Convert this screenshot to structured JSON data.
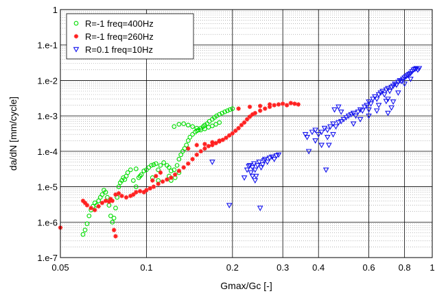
{
  "chart_data": {
    "type": "scatter",
    "title": "",
    "xlabel": "Gmax/Gc [-]",
    "ylabel": "da/dN [mm/cycle]",
    "xscale": "log",
    "yscale": "log",
    "xlim": [
      0.05,
      1
    ],
    "ylim": [
      1e-07,
      1
    ],
    "x_ticks": [
      {
        "value": 0.05,
        "label": "0.05"
      },
      {
        "value": 0.1,
        "label": "0.1"
      },
      {
        "value": 0.2,
        "label": "0.2"
      },
      {
        "value": 0.3,
        "label": "0.3"
      },
      {
        "value": 0.4,
        "label": "0.4"
      },
      {
        "value": 0.6,
        "label": "0.6"
      },
      {
        "value": 0.8,
        "label": "0.8"
      },
      {
        "value": 1,
        "label": "1"
      }
    ],
    "y_ticks": [
      {
        "value": 1e-07,
        "label": "1.e-7"
      },
      {
        "value": 1e-06,
        "label": "1.e-6"
      },
      {
        "value": 1e-05,
        "label": "1.e-5"
      },
      {
        "value": 0.0001,
        "label": "1.e-4"
      },
      {
        "value": 0.001,
        "label": "1.e-3"
      },
      {
        "value": 0.01,
        "label": "1.e-2"
      },
      {
        "value": 0.1,
        "label": "1.e-1"
      },
      {
        "value": 1,
        "label": "1"
      }
    ],
    "grid": {
      "major": true,
      "minor_y": true,
      "minor_style": "dotted"
    },
    "legend_position": "top-left",
    "series": [
      {
        "name": "R=-1 freq=400Hz",
        "color": "#00dd00",
        "marker": "circle",
        "points": [
          [
            0.06,
            4.5e-07
          ],
          [
            0.061,
            6e-07
          ],
          [
            0.062,
            9e-07
          ],
          [
            0.063,
            1.5e-06
          ],
          [
            0.064,
            2.2e-06
          ],
          [
            0.065,
            2.8e-06
          ],
          [
            0.066,
            3.5e-06
          ],
          [
            0.067,
            3e-06
          ],
          [
            0.068,
            4e-06
          ],
          [
            0.069,
            5e-06
          ],
          [
            0.07,
            6e-06
          ],
          [
            0.071,
            8e-06
          ],
          [
            0.072,
            7e-06
          ],
          [
            0.073,
            5e-06
          ],
          [
            0.074,
            3e-06
          ],
          [
            0.075,
            1.5e-06
          ],
          [
            0.076,
            1e-06
          ],
          [
            0.077,
            1.3e-06
          ],
          [
            0.078,
            2.5e-06
          ],
          [
            0.079,
            5e-06
          ],
          [
            0.08,
            1e-05
          ],
          [
            0.081,
            1.3e-05
          ],
          [
            0.082,
            1.5e-05
          ],
          [
            0.083,
            1.8e-05
          ],
          [
            0.084,
            1.6e-05
          ],
          [
            0.085,
            2e-05
          ],
          [
            0.086,
            2.5e-05
          ],
          [
            0.088,
            3e-05
          ],
          [
            0.09,
            1.5e-05
          ],
          [
            0.092,
            1e-05
          ],
          [
            0.094,
            1.8e-05
          ],
          [
            0.096,
            2.2e-05
          ],
          [
            0.098,
            2.8e-05
          ],
          [
            0.1,
            3e-05
          ],
          [
            0.102,
            3.5e-05
          ],
          [
            0.104,
            4e-05
          ],
          [
            0.106,
            4.2e-05
          ],
          [
            0.108,
            4.5e-05
          ],
          [
            0.11,
            3e-05
          ],
          [
            0.112,
            4e-05
          ],
          [
            0.115,
            4.8e-05
          ],
          [
            0.118,
            4e-05
          ],
          [
            0.12,
            3.5e-05
          ],
          [
            0.122,
            2.8e-05
          ],
          [
            0.125,
            3e-05
          ],
          [
            0.128,
            4e-05
          ],
          [
            0.13,
            6e-05
          ],
          [
            0.132,
            8e-05
          ],
          [
            0.134,
            0.0001
          ],
          [
            0.136,
            0.00012
          ],
          [
            0.138,
            0.00015
          ],
          [
            0.14,
            0.0002
          ],
          [
            0.142,
            0.00025
          ],
          [
            0.145,
            0.0003
          ],
          [
            0.148,
            0.00035
          ],
          [
            0.15,
            0.00038
          ],
          [
            0.152,
            0.0004
          ],
          [
            0.155,
            0.00045
          ],
          [
            0.158,
            0.0005
          ],
          [
            0.16,
            0.00055
          ],
          [
            0.163,
            0.0006
          ],
          [
            0.166,
            0.0007
          ],
          [
            0.17,
            0.0008
          ],
          [
            0.173,
            0.0009
          ],
          [
            0.176,
            0.001
          ],
          [
            0.18,
            0.0011
          ],
          [
            0.184,
            0.0012
          ],
          [
            0.188,
            0.0013
          ],
          [
            0.192,
            0.0014
          ],
          [
            0.196,
            0.0015
          ],
          [
            0.2,
            0.0016
          ],
          [
            0.125,
            0.0005
          ],
          [
            0.13,
            0.00058
          ],
          [
            0.135,
            0.0006
          ],
          [
            0.14,
            0.00055
          ],
          [
            0.145,
            0.0005
          ],
          [
            0.15,
            0.00045
          ],
          [
            0.155,
            0.0004
          ],
          [
            0.16,
            0.00043
          ],
          [
            0.165,
            0.00048
          ],
          [
            0.17,
            0.00052
          ],
          [
            0.175,
            0.00058
          ],
          [
            0.18,
            0.00065
          ],
          [
            0.12,
            2e-05
          ],
          [
            0.122,
            1.5e-05
          ],
          [
            0.126,
            1.8e-05
          ],
          [
            0.13,
            2.5e-05
          ],
          [
            0.11,
            1.5e-05
          ],
          [
            0.105,
            1.8e-05
          ],
          [
            0.095,
            2e-05
          ],
          [
            0.092,
            3.2e-05
          ]
        ]
      },
      {
        "name": "R=-1 freq=260Hz",
        "color": "#ff2020",
        "marker": "star",
        "points": [
          [
            0.05,
            7e-07
          ],
          [
            0.06,
            4e-06
          ],
          [
            0.061,
            3.5e-06
          ],
          [
            0.062,
            3e-06
          ],
          [
            0.064,
            2.5e-06
          ],
          [
            0.066,
            2.2e-06
          ],
          [
            0.068,
            2.8e-06
          ],
          [
            0.07,
            3.5e-06
          ],
          [
            0.072,
            4e-06
          ],
          [
            0.074,
            3.8e-06
          ],
          [
            0.075,
            4.5e-06
          ],
          [
            0.076,
            4e-06
          ],
          [
            0.078,
            6e-06
          ],
          [
            0.08,
            6.5e-06
          ],
          [
            0.082,
            5.5e-06
          ],
          [
            0.085,
            5e-06
          ],
          [
            0.088,
            5.5e-06
          ],
          [
            0.09,
            6e-06
          ],
          [
            0.092,
            7e-06
          ],
          [
            0.095,
            7.5e-06
          ],
          [
            0.098,
            7e-06
          ],
          [
            0.1,
            8e-06
          ],
          [
            0.103,
            9e-06
          ],
          [
            0.106,
            1e-05
          ],
          [
            0.11,
            1.2e-05
          ],
          [
            0.114,
            1.4e-05
          ],
          [
            0.118,
            1.6e-05
          ],
          [
            0.122,
            1.8e-05
          ],
          [
            0.126,
            2.2e-05
          ],
          [
            0.13,
            2.8e-05
          ],
          [
            0.135,
            3.5e-05
          ],
          [
            0.14,
            4.5e-05
          ],
          [
            0.145,
            6e-05
          ],
          [
            0.15,
            8e-05
          ],
          [
            0.155,
            0.0001
          ],
          [
            0.16,
            0.00012
          ],
          [
            0.165,
            0.00014
          ],
          [
            0.17,
            0.00015
          ],
          [
            0.175,
            0.00017
          ],
          [
            0.18,
            0.00019
          ],
          [
            0.185,
            0.00021
          ],
          [
            0.19,
            0.00024
          ],
          [
            0.195,
            0.00028
          ],
          [
            0.2,
            0.00032
          ],
          [
            0.205,
            0.00038
          ],
          [
            0.21,
            0.00045
          ],
          [
            0.215,
            0.00055
          ],
          [
            0.22,
            0.00065
          ],
          [
            0.225,
            0.0008
          ],
          [
            0.23,
            0.00095
          ],
          [
            0.235,
            0.0011
          ],
          [
            0.24,
            0.0012
          ],
          [
            0.25,
            0.0014
          ],
          [
            0.26,
            0.0016
          ],
          [
            0.27,
            0.0018
          ],
          [
            0.28,
            0.002
          ],
          [
            0.29,
            0.0021
          ],
          [
            0.3,
            0.0022
          ],
          [
            0.31,
            0.002
          ],
          [
            0.32,
            0.0023
          ],
          [
            0.33,
            0.0022
          ],
          [
            0.34,
            0.0021
          ],
          [
            0.21,
            0.0016
          ],
          [
            0.23,
            0.0018
          ],
          [
            0.25,
            0.0019
          ],
          [
            0.27,
            0.0021
          ],
          [
            0.14,
            0.00012
          ],
          [
            0.15,
            0.00015
          ],
          [
            0.16,
            0.00016
          ],
          [
            0.17,
            0.00018
          ],
          [
            0.18,
            0.0002
          ],
          [
            0.078,
            4e-07
          ],
          [
            0.077,
            6e-07
          ],
          [
            0.105,
            1.5e-05
          ],
          [
            0.108,
            2e-05
          ],
          [
            0.112,
            2.5e-05
          ]
        ]
      },
      {
        "name": "R=0.1 freq=10Hz",
        "color": "#1010ee",
        "marker": "triangle-down",
        "points": [
          [
            0.17,
            5e-05
          ],
          [
            0.195,
            3e-06
          ],
          [
            0.22,
            1.8e-05
          ],
          [
            0.225,
            3e-05
          ],
          [
            0.23,
            4e-05
          ],
          [
            0.232,
            2.5e-05
          ],
          [
            0.235,
            3.5e-05
          ],
          [
            0.238,
            4.5e-05
          ],
          [
            0.24,
            3e-05
          ],
          [
            0.242,
            2e-05
          ],
          [
            0.245,
            4e-05
          ],
          [
            0.248,
            5e-05
          ],
          [
            0.25,
            2.5e-06
          ],
          [
            0.252,
            3.5e-05
          ],
          [
            0.255,
            4.2e-05
          ],
          [
            0.258,
            5.5e-05
          ],
          [
            0.26,
            6e-05
          ],
          [
            0.265,
            5e-05
          ],
          [
            0.27,
            6.5e-05
          ],
          [
            0.275,
            7e-05
          ],
          [
            0.28,
            6e-05
          ],
          [
            0.285,
            7.5e-05
          ],
          [
            0.29,
            8e-05
          ],
          [
            0.24,
            1.5e-05
          ],
          [
            0.235,
            2e-05
          ],
          [
            0.228,
            3.8e-05
          ],
          [
            0.36,
            0.0003
          ],
          [
            0.365,
            0.00025
          ],
          [
            0.37,
            0.0001
          ],
          [
            0.38,
            0.00035
          ],
          [
            0.39,
            0.0004
          ],
          [
            0.4,
            0.0003
          ],
          [
            0.41,
            0.00035
          ],
          [
            0.42,
            0.00045
          ],
          [
            0.425,
            3e-05
          ],
          [
            0.43,
            0.00025
          ],
          [
            0.435,
            0.00015
          ],
          [
            0.44,
            0.0005
          ],
          [
            0.45,
            0.0006
          ],
          [
            0.46,
            0.0005
          ],
          [
            0.47,
            0.00065
          ],
          [
            0.48,
            0.0007
          ],
          [
            0.49,
            0.0008
          ],
          [
            0.5,
            0.0009
          ],
          [
            0.51,
            0.001
          ],
          [
            0.52,
            0.0011
          ],
          [
            0.53,
            0.0012
          ],
          [
            0.54,
            0.001
          ],
          [
            0.55,
            0.0013
          ],
          [
            0.56,
            0.0015
          ],
          [
            0.57,
            0.0014
          ],
          [
            0.58,
            0.0018
          ],
          [
            0.59,
            0.002
          ],
          [
            0.6,
            0.0025
          ],
          [
            0.61,
            0.0022
          ],
          [
            0.62,
            0.003
          ],
          [
            0.63,
            0.0035
          ],
          [
            0.64,
            0.003
          ],
          [
            0.65,
            0.004
          ],
          [
            0.66,
            0.0045
          ],
          [
            0.67,
            0.005
          ],
          [
            0.68,
            0.004
          ],
          [
            0.69,
            0.0055
          ],
          [
            0.7,
            0.006
          ],
          [
            0.71,
            0.005
          ],
          [
            0.72,
            0.0065
          ],
          [
            0.73,
            0.007
          ],
          [
            0.74,
            0.008
          ],
          [
            0.75,
            0.0075
          ],
          [
            0.76,
            0.009
          ],
          [
            0.77,
            0.01
          ],
          [
            0.78,
            0.0095
          ],
          [
            0.79,
            0.011
          ],
          [
            0.8,
            0.012
          ],
          [
            0.81,
            0.013
          ],
          [
            0.82,
            0.014
          ],
          [
            0.83,
            0.015
          ],
          [
            0.84,
            0.016
          ],
          [
            0.85,
            0.018
          ],
          [
            0.86,
            0.02
          ],
          [
            0.87,
            0.021
          ],
          [
            0.88,
            0.022
          ],
          [
            0.89,
            0.02
          ],
          [
            0.9,
            0.022
          ],
          [
            0.47,
            0.0018
          ],
          [
            0.48,
            0.0013
          ],
          [
            0.6,
            0.0015
          ],
          [
            0.65,
            0.002
          ],
          [
            0.7,
            0.003
          ],
          [
            0.73,
            0.0025
          ],
          [
            0.76,
            0.0045
          ],
          [
            0.8,
            0.008
          ],
          [
            0.84,
            0.011
          ],
          [
            0.53,
            0.0006
          ],
          [
            0.56,
            0.0008
          ],
          [
            0.6,
            0.001
          ],
          [
            0.64,
            0.0014
          ],
          [
            0.69,
            0.0026
          ],
          [
            0.41,
            0.00015
          ],
          [
            0.45,
            0.0003
          ],
          [
            0.39,
            0.0002
          ],
          [
            0.43,
            0.0004
          ],
          [
            0.455,
            0.0015
          ],
          [
            0.72,
            0.0017
          ],
          [
            0.7,
            0.0012
          ]
        ]
      }
    ]
  }
}
